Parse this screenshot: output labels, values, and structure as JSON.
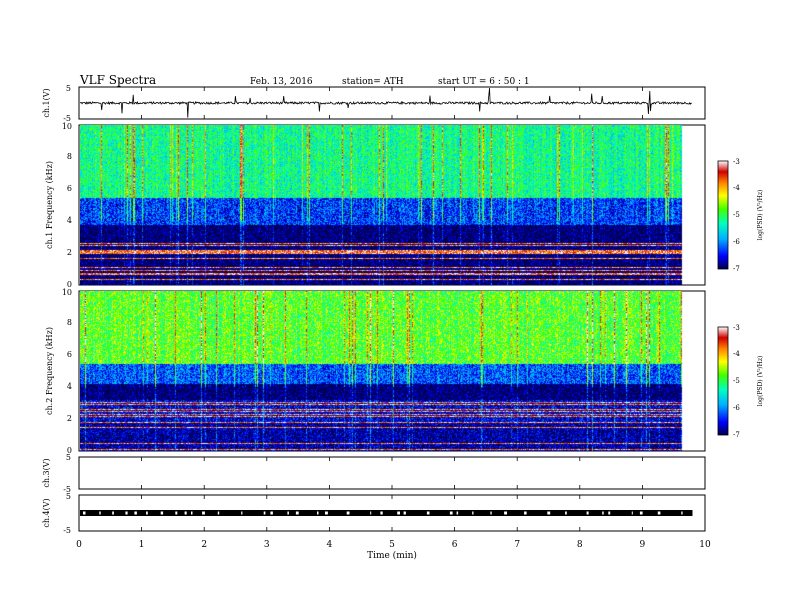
{
  "header": {
    "title": "VLF Spectra",
    "date": "Feb. 13, 2016",
    "station": "station= ATH",
    "start": "start UT =  6 : 50 : 1"
  },
  "chart_data": [
    {
      "type": "line",
      "panel": "ch1-waveform",
      "ylabel": "ch.1(V)",
      "ylim": [
        -5,
        5
      ],
      "yticks": [
        "5",
        "-5"
      ],
      "xlim": [
        0,
        10
      ],
      "baseline": 0,
      "trace_end_min": 9.8
    },
    {
      "type": "heatmap",
      "panel": "ch1-spectrogram",
      "ylabel": "ch.1  Frequency (kHz)",
      "ylim": [
        0,
        10
      ],
      "yticks": [
        "0",
        "2",
        "4",
        "6",
        "8",
        "10"
      ],
      "xlim": [
        0,
        10
      ],
      "data_end_min": 9.8,
      "colorbar": {
        "label": "log(PSD) (V²/Hz)",
        "range": [
          -7,
          -3
        ],
        "ticks": [
          "-3",
          "-4",
          "-5",
          "-6",
          "-7"
        ]
      },
      "bands": [
        {
          "f": [
            0,
            1.8
          ],
          "level": -7
        },
        {
          "f": [
            1.8,
            3.8
          ],
          "level": -7
        },
        {
          "f": [
            3.8,
            5.5
          ],
          "level": -6.3
        },
        {
          "f": [
            5.5,
            10
          ],
          "level": -5.2
        }
      ]
    },
    {
      "type": "heatmap",
      "panel": "ch2-spectrogram",
      "ylabel": "ch.2  Frequency (kHz)",
      "ylim": [
        0,
        10
      ],
      "yticks": [
        "0",
        "2",
        "4",
        "6",
        "8",
        "10"
      ],
      "xlim": [
        0,
        10
      ],
      "data_end_min": 9.8,
      "colorbar": {
        "label": "log(PSD) (V²/Hz)",
        "range": [
          -7,
          -3
        ],
        "ticks": [
          "-3",
          "-4",
          "-5",
          "-6",
          "-7"
        ]
      },
      "bands": [
        {
          "f": [
            0,
            1.8
          ],
          "level": -6.8
        },
        {
          "f": [
            1.8,
            3.2
          ],
          "level": -6.6
        },
        {
          "f": [
            3.2,
            4.2
          ],
          "level": -7
        },
        {
          "f": [
            4.2,
            5.5
          ],
          "level": -6.2
        },
        {
          "f": [
            5.5,
            10
          ],
          "level": -4.8
        }
      ]
    },
    {
      "type": "line",
      "panel": "ch3-waveform",
      "ylabel": "ch.3(V)",
      "ylim": [
        -5,
        5
      ],
      "yticks": [
        "5",
        "-5"
      ],
      "xlim": [
        0,
        10
      ],
      "baseline": -5,
      "trace_end_min": 9.8
    },
    {
      "type": "line",
      "panel": "ch4-waveform",
      "ylabel": "ch.4(V)",
      "ylim": [
        -5,
        5
      ],
      "yticks": [
        "5",
        "-5"
      ],
      "xlim": [
        0,
        10
      ],
      "xlabel": "Time (min)",
      "xticks": [
        "0",
        "1",
        "2",
        "3",
        "4",
        "5",
        "6",
        "7",
        "8",
        "9",
        "10"
      ],
      "baseline": 0,
      "trace_end_min": 9.8
    }
  ]
}
